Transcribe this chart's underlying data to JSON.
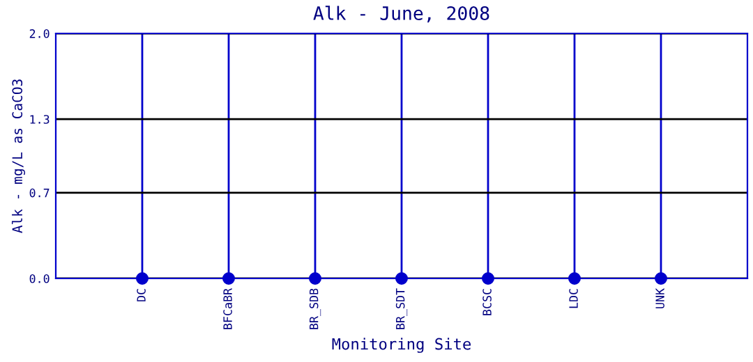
{
  "chart_data": {
    "type": "scatter",
    "title": "Alk - June, 2008",
    "xlabel": "Monitoring Site",
    "ylabel": "Alk - mg/L as CaCO3",
    "categories": [
      "DC",
      "BFCaBR",
      "BR_SDB",
      "BR_SDT",
      "BCSC",
      "LDC",
      "UNK"
    ],
    "series": [
      {
        "color": "#0000cc",
        "values": [
          0,
          0,
          0,
          0,
          0,
          0,
          0
        ]
      }
    ],
    "ylim": [
      0,
      2.0
    ],
    "yticks": [
      {
        "value": 0,
        "label": "0.0"
      },
      {
        "value": 0.7,
        "label": "0.7"
      },
      {
        "value": 1.3,
        "label": "1.3"
      },
      {
        "value": 2.0,
        "label": "2.0"
      }
    ],
    "grid": true,
    "marker": "circle"
  }
}
